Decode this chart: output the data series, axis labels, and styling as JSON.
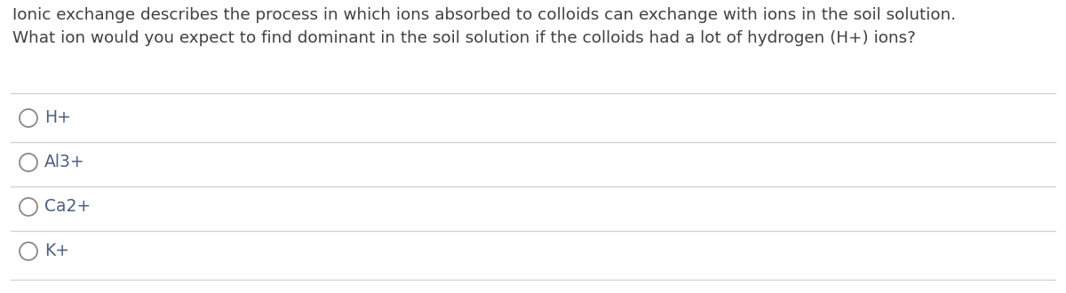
{
  "background_color": "#ffffff",
  "text_color": "#404040",
  "option_text_color": "#4a6080",
  "line_color": "#d0d0d0",
  "title_line1": "Ionic exchange describes the process in which ions absorbed to colloids can exchange with ions in the soil solution.",
  "title_line2": "What ion would you expect to find dominant in the soil solution if the colloids had a lot of hydrogen (H+) ions?",
  "options": [
    "H+",
    "Al3+",
    "Ca2+",
    "K+"
  ],
  "font_size_title": 13.2,
  "font_size_options": 13.5,
  "circle_edge_color": "#888888",
  "circle_face_color": "#ffffff",
  "circle_linewidth": 1.3
}
